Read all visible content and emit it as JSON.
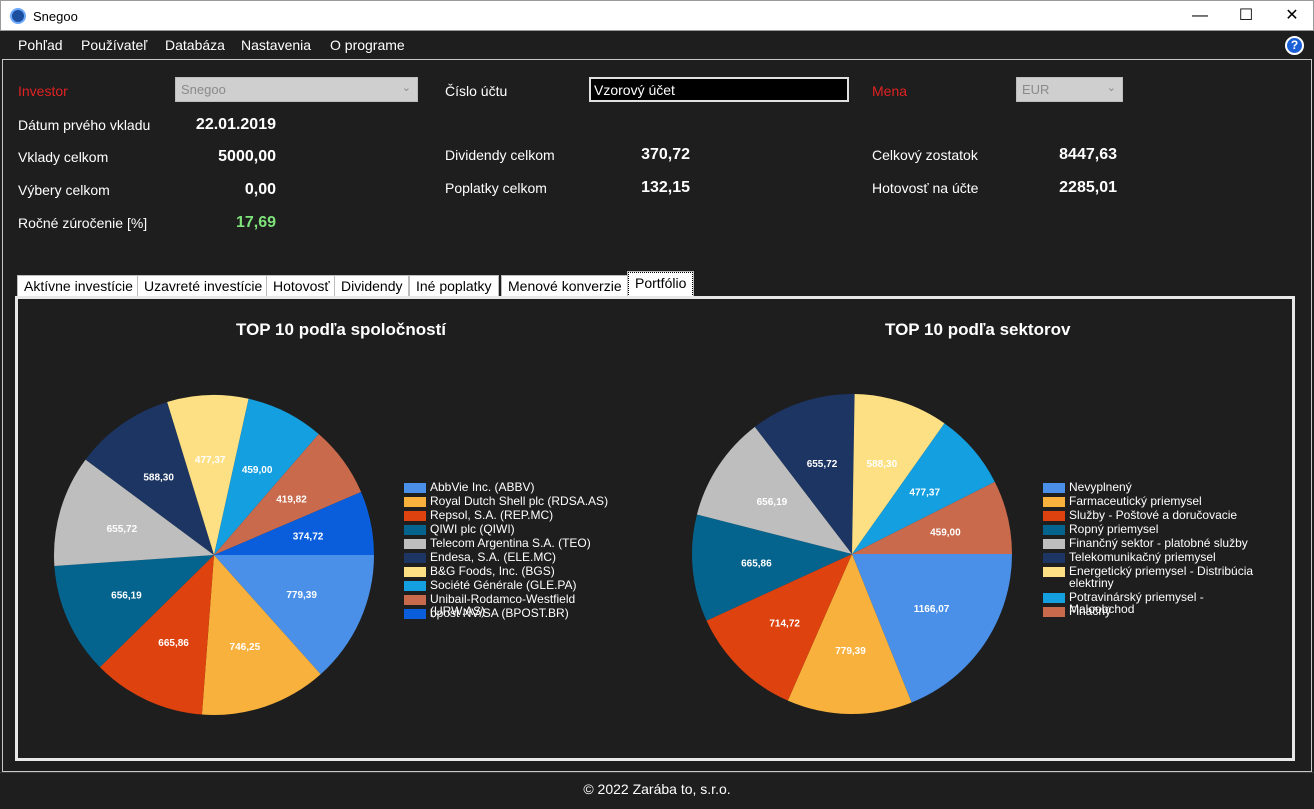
{
  "window": {
    "title": "Snegoo"
  },
  "menu": [
    "Pohľad",
    "Používateľ",
    "Databáza",
    "Nastavenia",
    "O programe"
  ],
  "form": {
    "investor_label": "Investor",
    "investor_value": "Snegoo",
    "account_label": "Číslo účtu",
    "account_value": "Vzorový účet",
    "currency_label": "Mena",
    "currency_value": "EUR",
    "first_deposit_label": "Dátum prvého vkladu",
    "first_deposit_value": "22.01.2019",
    "deposits_label": "Vklady celkom",
    "deposits_value": "5000,00",
    "withdrawals_label": "Výbery celkom",
    "withdrawals_value": "0,00",
    "yield_label": "Ročné zúročenie [%]",
    "yield_value": "17,69",
    "dividends_label": "Dividendy celkom",
    "dividends_value": "370,72",
    "fees_label": "Poplatky celkom",
    "fees_value": "132,15",
    "balance_label": "Celkový zostatok",
    "balance_value": "8447,63",
    "cash_label": "Hotovosť na účte",
    "cash_value": "2285,01"
  },
  "tabs": [
    "Aktívne investície",
    "Uzavreté investície",
    "Hotovosť",
    "Dividendy",
    "Iné poplatky",
    "Menové konverzie",
    "Portfólio"
  ],
  "active_tab": "Portfólio",
  "chart_data": [
    {
      "type": "pie",
      "title": "TOP 10 podľa spoločností",
      "legend_position": "right",
      "labels": [
        "AbbVie Inc. (ABBV)",
        "Royal Dutch Shell plc (RDSA.AS)",
        "Repsol, S.A. (REP.MC)",
        "QIWI plc (QIWI)",
        "Telecom Argentina S.A. (TEO)",
        "Endesa, S.A. (ELE.MC)",
        "B&G Foods, Inc. (BGS)",
        "Société Générale (GLE.PA)",
        "Unibail-Rodamco-Westfield (URW.AS)",
        "bpost NV/SA (BPOST.BR)"
      ],
      "values": [
        779.39,
        746.25,
        665.86,
        656.19,
        655.72,
        588.3,
        477.37,
        459.0,
        419.82,
        374.72
      ],
      "value_labels": [
        "779,39",
        "746,25",
        "665,86",
        "656,19",
        "655,72",
        "588,30",
        "477,37",
        "459,00",
        "419,82",
        "374,72"
      ],
      "colors": [
        "#4a90e8",
        "#f8b13c",
        "#dd420f",
        "#05648e",
        "#bebebe",
        "#1c3562",
        "#fde084",
        "#139fe0",
        "#c96a4c",
        "#0a5edb"
      ]
    },
    {
      "type": "pie",
      "title": "TOP 10 podľa sektorov",
      "legend_position": "right",
      "labels": [
        "Nevyplnený",
        "Farmaceutický priemysel",
        "Služby - Poštové a doručovacie",
        "Ropný priemysel",
        "Finančný sektor - platobné služby",
        "Telekomunikačný priemysel",
        "Energetický priemysel - Distribúcia elektriny",
        "Potravinárský priemysel - Maloobchod",
        "Finačný"
      ],
      "values": [
        1166.07,
        779.39,
        714.72,
        665.86,
        656.19,
        655.72,
        588.3,
        477.37,
        459.0
      ],
      "value_labels": [
        "1166,07",
        "779,39",
        "714,72",
        "665,86",
        "656,19",
        "655,72",
        "588,30",
        "477,37",
        "459,00"
      ],
      "colors": [
        "#4a90e8",
        "#f8b13c",
        "#dd420f",
        "#05648e",
        "#bebebe",
        "#1c3562",
        "#fde084",
        "#139fe0",
        "#c96a4c"
      ]
    }
  ],
  "footer": "© 2022 Zarába to, s.r.o."
}
